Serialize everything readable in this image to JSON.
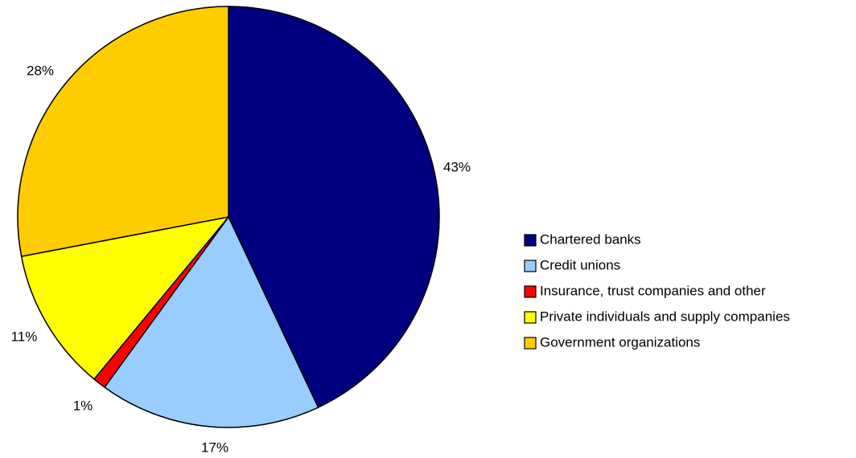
{
  "chart_data": {
    "type": "pie",
    "slices": [
      {
        "label": "Chartered banks",
        "value": 43,
        "display": "43%",
        "color": "#000080"
      },
      {
        "label": "Credit unions",
        "value": 17,
        "display": "17%",
        "color": "#99CCFF"
      },
      {
        "label": "Insurance, trust companies and other",
        "value": 1,
        "display": "1%",
        "color": "#FF0000"
      },
      {
        "label": "Private individuals and supply companies",
        "value": 11,
        "display": "11%",
        "color": "#FFFF00"
      },
      {
        "label": "Government organizations",
        "value": 28,
        "display": "28%",
        "color": "#FFCC00"
      }
    ],
    "start": "12 o'clock",
    "direction": "clockwise",
    "legend_position": "right"
  }
}
